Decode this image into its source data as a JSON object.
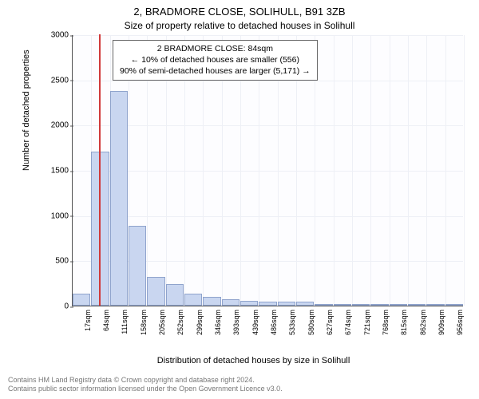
{
  "title": "2, BRADMORE CLOSE, SOLIHULL, B91 3ZB",
  "subtitle": "Size of property relative to detached houses in Solihull",
  "chart": {
    "type": "histogram",
    "yaxis_label": "Number of detached properties",
    "xaxis_label": "Distribution of detached houses by size in Solihull",
    "ylim": [
      0,
      3000
    ],
    "ytick_step": 500,
    "yticks": [
      0,
      500,
      1000,
      1500,
      2000,
      2500,
      3000
    ],
    "xtick_labels": [
      "17sqm",
      "64sqm",
      "111sqm",
      "158sqm",
      "205sqm",
      "252sqm",
      "299sqm",
      "346sqm",
      "393sqm",
      "439sqm",
      "486sqm",
      "533sqm",
      "580sqm",
      "627sqm",
      "674sqm",
      "721sqm",
      "768sqm",
      "815sqm",
      "862sqm",
      "909sqm",
      "956sqm"
    ],
    "bar_values": [
      130,
      1700,
      2370,
      880,
      320,
      240,
      130,
      100,
      70,
      50,
      40,
      40,
      40,
      6,
      6,
      6,
      6,
      6,
      6,
      6,
      6
    ],
    "bar_fill": "#c9d6f0",
    "bar_stroke": "#8fa3cc",
    "background_color": "#fdfdff",
    "grid_color": "#eef0f6",
    "axis_color": "#555555",
    "marker": {
      "value_sqm": 84,
      "color": "#d13a3a",
      "bar_index_position": 1.43
    },
    "annotation": {
      "line1": "2 BRADMORE CLOSE: 84sqm",
      "line2": "← 10% of detached houses are smaller (556)",
      "line3": "90% of semi-detached houses are larger (5,171) →",
      "border_color": "#666666",
      "fontsize": 10.5
    },
    "label_fontsize": 11,
    "tick_fontsize": 10
  },
  "footer": {
    "line1": "Contains HM Land Registry data © Crown copyright and database right 2024.",
    "line2": "Contains public sector information licensed under the Open Government Licence v3.0."
  }
}
